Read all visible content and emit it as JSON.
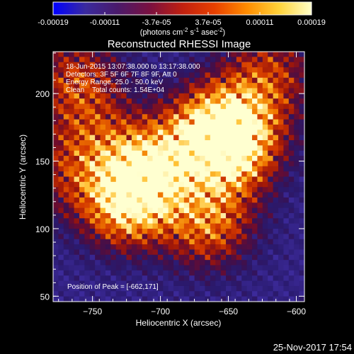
{
  "colorbar": {
    "ticks": [
      "-0.00019",
      "-0.00011",
      "-3.7e-05",
      "3.7e-05",
      "0.00011",
      "0.00019"
    ],
    "unit_main": "(photons cm",
    "unit_e1": "-2",
    "unit_mid": " s",
    "unit_e2": "-1",
    "unit_tail": " asec",
    "unit_e3": "-2",
    "unit_close": ")"
  },
  "title": "Reconstructed RHESSI Image",
  "info_lines": [
    "18-Jun-2015 13:07:38.000 to 13:17:38.000",
    "Detectors: 3F 5F 6F 7F 8F 9F, Att 0",
    "Energy Range: 25.0 - 50.0 keV",
    "Clean    Total counts: 1.54E+04"
  ],
  "peak_text": "Position of Peak = [-662,171]",
  "footer_date": "25-Nov-2017 17:54",
  "chart_data": {
    "type": "heatmap",
    "title": "Reconstructed RHESSI Image",
    "xlabel": "Heliocentric X (arcsec)",
    "ylabel": "Heliocentric Y (arcsec)",
    "xlim": [
      -779,
      -594
    ],
    "ylim": [
      46,
      231
    ],
    "x_ticks": [
      -750,
      -700,
      -650,
      -600
    ],
    "y_ticks": [
      50,
      100,
      150,
      200
    ],
    "x_tick_labels": [
      "−750",
      "−700",
      "−650",
      "−600"
    ],
    "y_tick_labels": [
      "50",
      "100",
      "150",
      "200"
    ],
    "grid": false,
    "colorscale": [
      "#0000ff",
      "#3a2a9e",
      "#4a1a6a",
      "#7a1040",
      "#c02010",
      "#e84000",
      "#ff8c00",
      "#ffd23a",
      "#ffffc8"
    ],
    "blobs": [
      {
        "x": -725,
        "y": 120,
        "value": 1.0
      },
      {
        "x": -715,
        "y": 138,
        "value": 0.75
      },
      {
        "x": -700,
        "y": 150,
        "value": 0.6
      },
      {
        "x": -662,
        "y": 171,
        "value": 1.0
      },
      {
        "x": -648,
        "y": 155,
        "value": 0.8
      },
      {
        "x": -640,
        "y": 180,
        "value": 0.6
      },
      {
        "x": -665,
        "y": 105,
        "value": 0.75
      },
      {
        "x": -762,
        "y": 210,
        "value": 0.55
      },
      {
        "x": -750,
        "y": 170,
        "value": 0.4
      },
      {
        "x": -620,
        "y": 215,
        "value": 0.5
      },
      {
        "x": -770,
        "y": 140,
        "value": 0.35
      }
    ],
    "annotations": [
      "Position of Peak = [-662,171]"
    ]
  }
}
